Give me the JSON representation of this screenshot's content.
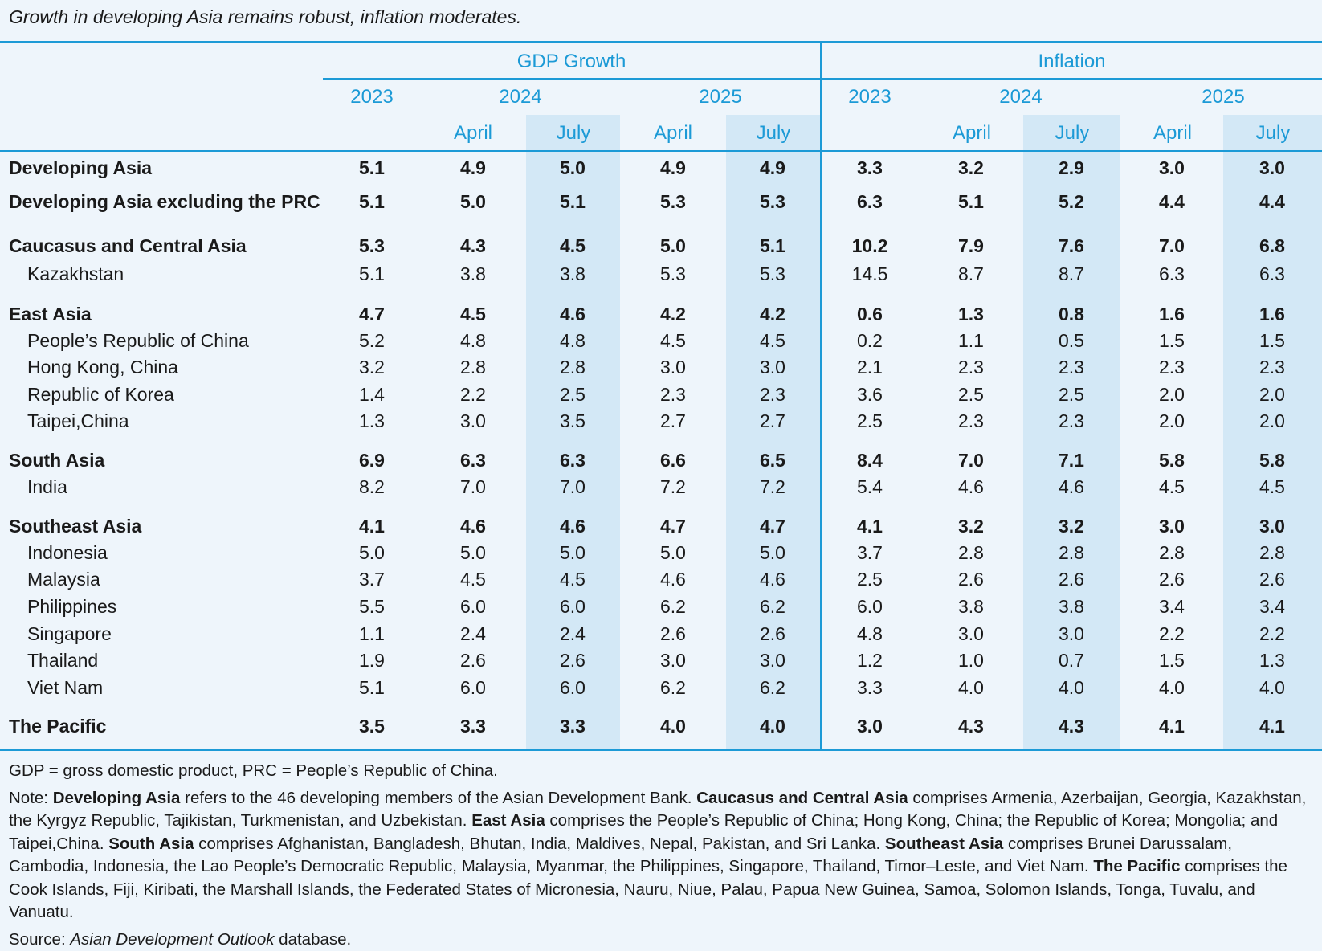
{
  "title": "Growth in developing Asia remains robust, inflation moderates.",
  "header": {
    "groups": [
      "GDP Growth",
      "Inflation"
    ],
    "years": [
      "2023",
      "2024",
      "2025",
      "2023",
      "2024",
      "2025"
    ],
    "subs": [
      "April",
      "July",
      "April",
      "July",
      "April",
      "July",
      "April",
      "July"
    ]
  },
  "rows": [
    {
      "label": "Developing Asia",
      "values": [
        "5.1",
        "4.9",
        "5.0",
        "4.9",
        "4.9",
        "3.3",
        "3.2",
        "2.9",
        "3.0",
        "3.0"
      ]
    },
    {
      "label": "Developing Asia excluding the PRC",
      "values": [
        "5.1",
        "5.0",
        "5.1",
        "5.3",
        "5.3",
        "6.3",
        "5.1",
        "5.2",
        "4.4",
        "4.4"
      ]
    },
    {
      "label": "Caucasus and Central Asia",
      "values": [
        "5.3",
        "4.3",
        "4.5",
        "5.0",
        "5.1",
        "10.2",
        "7.9",
        "7.6",
        "7.0",
        "6.8"
      ]
    },
    {
      "label": "Kazakhstan",
      "values": [
        "5.1",
        "3.8",
        "3.8",
        "5.3",
        "5.3",
        "14.5",
        "8.7",
        "8.7",
        "6.3",
        "6.3"
      ]
    },
    {
      "label": "East Asia",
      "values": [
        "4.7",
        "4.5",
        "4.6",
        "4.2",
        "4.2",
        "0.6",
        "1.3",
        "0.8",
        "1.6",
        "1.6"
      ]
    },
    {
      "label": "People’s Republic of China",
      "values": [
        "5.2",
        "4.8",
        "4.8",
        "4.5",
        "4.5",
        "0.2",
        "1.1",
        "0.5",
        "1.5",
        "1.5"
      ]
    },
    {
      "label": "Hong Kong, China",
      "values": [
        "3.2",
        "2.8",
        "2.8",
        "3.0",
        "3.0",
        "2.1",
        "2.3",
        "2.3",
        "2.3",
        "2.3"
      ]
    },
    {
      "label": "Republic of Korea",
      "values": [
        "1.4",
        "2.2",
        "2.5",
        "2.3",
        "2.3",
        "3.6",
        "2.5",
        "2.5",
        "2.0",
        "2.0"
      ]
    },
    {
      "label": "Taipei,China",
      "values": [
        "1.3",
        "3.0",
        "3.5",
        "2.7",
        "2.7",
        "2.5",
        "2.3",
        "2.3",
        "2.0",
        "2.0"
      ]
    },
    {
      "label": "South Asia",
      "values": [
        "6.9",
        "6.3",
        "6.3",
        "6.6",
        "6.5",
        "8.4",
        "7.0",
        "7.1",
        "5.8",
        "5.8"
      ]
    },
    {
      "label": "India",
      "values": [
        "8.2",
        "7.0",
        "7.0",
        "7.2",
        "7.2",
        "5.4",
        "4.6",
        "4.6",
        "4.5",
        "4.5"
      ]
    },
    {
      "label": "Southeast Asia",
      "values": [
        "4.1",
        "4.6",
        "4.6",
        "4.7",
        "4.7",
        "4.1",
        "3.2",
        "3.2",
        "3.0",
        "3.0"
      ]
    },
    {
      "label": "Indonesia",
      "values": [
        "5.0",
        "5.0",
        "5.0",
        "5.0",
        "5.0",
        "3.7",
        "2.8",
        "2.8",
        "2.8",
        "2.8"
      ]
    },
    {
      "label": "Malaysia",
      "values": [
        "3.7",
        "4.5",
        "4.5",
        "4.6",
        "4.6",
        "2.5",
        "2.6",
        "2.6",
        "2.6",
        "2.6"
      ]
    },
    {
      "label": "Philippines",
      "values": [
        "5.5",
        "6.0",
        "6.0",
        "6.2",
        "6.2",
        "6.0",
        "3.8",
        "3.8",
        "3.4",
        "3.4"
      ]
    },
    {
      "label": "Singapore",
      "values": [
        "1.1",
        "2.4",
        "2.4",
        "2.6",
        "2.6",
        "4.8",
        "3.0",
        "3.0",
        "2.2",
        "2.2"
      ]
    },
    {
      "label": "Thailand",
      "values": [
        "1.9",
        "2.6",
        "2.6",
        "3.0",
        "3.0",
        "1.2",
        "1.0",
        "0.7",
        "1.5",
        "1.3"
      ]
    },
    {
      "label": "Viet Nam",
      "values": [
        "5.1",
        "6.0",
        "6.0",
        "6.2",
        "6.2",
        "3.3",
        "4.0",
        "4.0",
        "4.0",
        "4.0"
      ]
    },
    {
      "label": "The Pacific",
      "values": [
        "3.5",
        "3.3",
        "3.3",
        "4.0",
        "4.0",
        "3.0",
        "4.3",
        "4.3",
        "4.1",
        "4.1"
      ]
    }
  ],
  "notes": {
    "abbrev": "GDP = gross domestic product, PRC = People’s Republic of China.",
    "note_prefix": "Note: ",
    "note_parts": [
      {
        "term": "Developing Asia",
        "text": " refers to the 46 developing members of the Asian Development Bank. "
      },
      {
        "term": "Caucasus and Central Asia",
        "text": " comprises Armenia, Azerbaijan, Georgia, Kazakhstan, the Kyrgyz Republic, Tajikistan, Turkmenistan, and Uzbekistan. "
      },
      {
        "term": "East Asia",
        "text": " comprises the People’s Republic of China; Hong Kong, China; the Republic of Korea; Mongolia; and Taipei,China. "
      },
      {
        "term": "South Asia",
        "text": " comprises Afghanistan, Bangladesh, Bhutan, India, Maldives, Nepal, Pakistan, and Sri Lanka. "
      },
      {
        "term": "Southeast Asia",
        "text": " comprises Brunei Darussalam, Cambodia, Indonesia, the Lao People’s Democratic Republic, Malaysia, Myanmar, the Philippines, Singapore, Thailand, Timor–Leste, and Viet Nam. "
      },
      {
        "term": "The Pacific",
        "text": " comprises the Cook Islands, Fiji, Kiribati, the Marshall Islands, the Federated States of Micronesia, Nauru, Niue, Palau, Papua New Guinea, Samoa, Solomon Islands, Tonga, Tuvalu, and Vanuatu."
      }
    ],
    "source_prefix": "Source: ",
    "source_name": "Asian Development Outlook",
    "source_suffix": " database."
  },
  "colors": {
    "accent": "#1c9ad6",
    "shade": "#d3e8f6",
    "background": "#eef5fb"
  }
}
